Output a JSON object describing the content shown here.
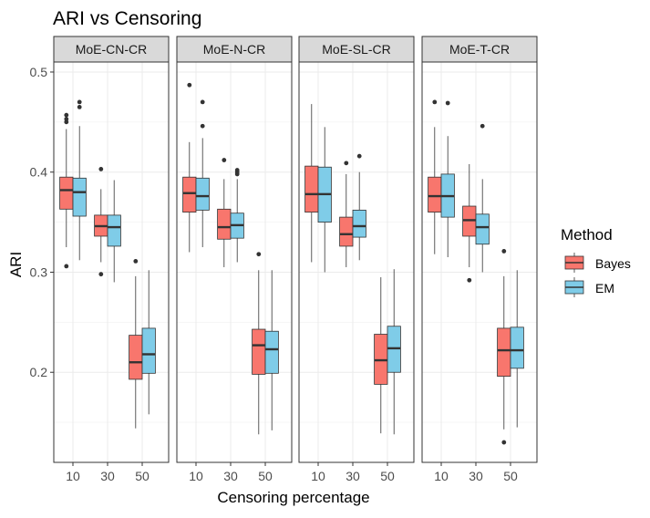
{
  "chart_data": {
    "type": "boxplot",
    "title": "ARI vs Censoring",
    "xlabel": "Censoring percentage",
    "ylabel": "ARI",
    "ylim": [
      0.11,
      0.51
    ],
    "y_ticks": [
      0.2,
      0.3,
      0.4,
      0.5
    ],
    "y_tick_labels": [
      "0.2",
      "0.3",
      "0.4",
      "0.5"
    ],
    "categories": [
      "10",
      "30",
      "50"
    ],
    "legend": {
      "title": "Method",
      "position": "right",
      "entries": [
        {
          "name": "Bayes",
          "color": "#F8766D"
        },
        {
          "name": "EM",
          "color": "#7FCCE8"
        }
      ]
    },
    "panels": [
      {
        "label": "MoE-CN-CR",
        "groups": [
          {
            "category": "10",
            "method": "Bayes",
            "whisker_low": 0.325,
            "q1": 0.363,
            "median": 0.382,
            "q3": 0.395,
            "whisker_high": 0.443,
            "outliers": [
              0.306,
              0.45,
              0.453,
              0.457
            ]
          },
          {
            "category": "10",
            "method": "EM",
            "whisker_low": 0.312,
            "q1": 0.356,
            "median": 0.38,
            "q3": 0.394,
            "whisker_high": 0.446,
            "outliers": [
              0.465,
              0.47
            ]
          },
          {
            "category": "30",
            "method": "Bayes",
            "whisker_low": 0.31,
            "q1": 0.336,
            "median": 0.346,
            "q3": 0.357,
            "whisker_high": 0.383,
            "outliers": [
              0.298,
              0.403
            ]
          },
          {
            "category": "30",
            "method": "EM",
            "whisker_low": 0.29,
            "q1": 0.326,
            "median": 0.345,
            "q3": 0.357,
            "whisker_high": 0.392,
            "outliers": []
          },
          {
            "category": "50",
            "method": "Bayes",
            "whisker_low": 0.144,
            "q1": 0.193,
            "median": 0.21,
            "q3": 0.237,
            "whisker_high": 0.296,
            "outliers": [
              0.311
            ]
          },
          {
            "category": "50",
            "method": "EM",
            "whisker_low": 0.158,
            "q1": 0.199,
            "median": 0.218,
            "q3": 0.244,
            "whisker_high": 0.302,
            "outliers": []
          }
        ]
      },
      {
        "label": "MoE-N-CR",
        "groups": [
          {
            "category": "10",
            "method": "Bayes",
            "whisker_low": 0.32,
            "q1": 0.36,
            "median": 0.379,
            "q3": 0.395,
            "whisker_high": 0.43,
            "outliers": [
              0.487
            ]
          },
          {
            "category": "10",
            "method": "EM",
            "whisker_low": 0.325,
            "q1": 0.362,
            "median": 0.376,
            "q3": 0.394,
            "whisker_high": 0.434,
            "outliers": [
              0.446,
              0.47
            ]
          },
          {
            "category": "30",
            "method": "Bayes",
            "whisker_low": 0.305,
            "q1": 0.333,
            "median": 0.345,
            "q3": 0.363,
            "whisker_high": 0.393,
            "outliers": [
              0.412
            ]
          },
          {
            "category": "30",
            "method": "EM",
            "whisker_low": 0.31,
            "q1": 0.334,
            "median": 0.347,
            "q3": 0.359,
            "whisker_high": 0.393,
            "outliers": [
              0.398,
              0.4,
              0.402
            ]
          },
          {
            "category": "50",
            "method": "Bayes",
            "whisker_low": 0.138,
            "q1": 0.198,
            "median": 0.227,
            "q3": 0.243,
            "whisker_high": 0.302,
            "outliers": [
              0.318
            ]
          },
          {
            "category": "50",
            "method": "EM",
            "whisker_low": 0.142,
            "q1": 0.199,
            "median": 0.223,
            "q3": 0.241,
            "whisker_high": 0.302,
            "outliers": []
          }
        ]
      },
      {
        "label": "MoE-SL-CR",
        "groups": [
          {
            "category": "10",
            "method": "Bayes",
            "whisker_low": 0.31,
            "q1": 0.36,
            "median": 0.378,
            "q3": 0.406,
            "whisker_high": 0.468,
            "outliers": []
          },
          {
            "category": "10",
            "method": "EM",
            "whisker_low": 0.3,
            "q1": 0.35,
            "median": 0.378,
            "q3": 0.405,
            "whisker_high": 0.445,
            "outliers": []
          },
          {
            "category": "30",
            "method": "Bayes",
            "whisker_low": 0.305,
            "q1": 0.326,
            "median": 0.338,
            "q3": 0.355,
            "whisker_high": 0.398,
            "outliers": [
              0.409
            ]
          },
          {
            "category": "30",
            "method": "EM",
            "whisker_low": 0.312,
            "q1": 0.335,
            "median": 0.346,
            "q3": 0.362,
            "whisker_high": 0.4,
            "outliers": [
              0.416
            ]
          },
          {
            "category": "50",
            "method": "Bayes",
            "whisker_low": 0.139,
            "q1": 0.188,
            "median": 0.212,
            "q3": 0.238,
            "whisker_high": 0.295,
            "outliers": []
          },
          {
            "category": "50",
            "method": "EM",
            "whisker_low": 0.138,
            "q1": 0.2,
            "median": 0.224,
            "q3": 0.246,
            "whisker_high": 0.303,
            "outliers": []
          }
        ]
      },
      {
        "label": "MoE-T-CR",
        "groups": [
          {
            "category": "10",
            "method": "Bayes",
            "whisker_low": 0.318,
            "q1": 0.36,
            "median": 0.376,
            "q3": 0.395,
            "whisker_high": 0.445,
            "outliers": [
              0.47
            ]
          },
          {
            "category": "10",
            "method": "EM",
            "whisker_low": 0.315,
            "q1": 0.355,
            "median": 0.376,
            "q3": 0.398,
            "whisker_high": 0.436,
            "outliers": [
              0.469
            ]
          },
          {
            "category": "30",
            "method": "Bayes",
            "whisker_low": 0.305,
            "q1": 0.336,
            "median": 0.352,
            "q3": 0.366,
            "whisker_high": 0.408,
            "outliers": [
              0.292
            ]
          },
          {
            "category": "30",
            "method": "EM",
            "whisker_low": 0.3,
            "q1": 0.328,
            "median": 0.345,
            "q3": 0.358,
            "whisker_high": 0.393,
            "outliers": [
              0.446
            ]
          },
          {
            "category": "50",
            "method": "Bayes",
            "whisker_low": 0.143,
            "q1": 0.196,
            "median": 0.222,
            "q3": 0.244,
            "whisker_high": 0.296,
            "outliers": [
              0.13,
              0.321
            ]
          },
          {
            "category": "50",
            "method": "EM",
            "whisker_low": 0.145,
            "q1": 0.204,
            "median": 0.222,
            "q3": 0.245,
            "whisker_high": 0.302,
            "outliers": []
          }
        ]
      }
    ]
  }
}
